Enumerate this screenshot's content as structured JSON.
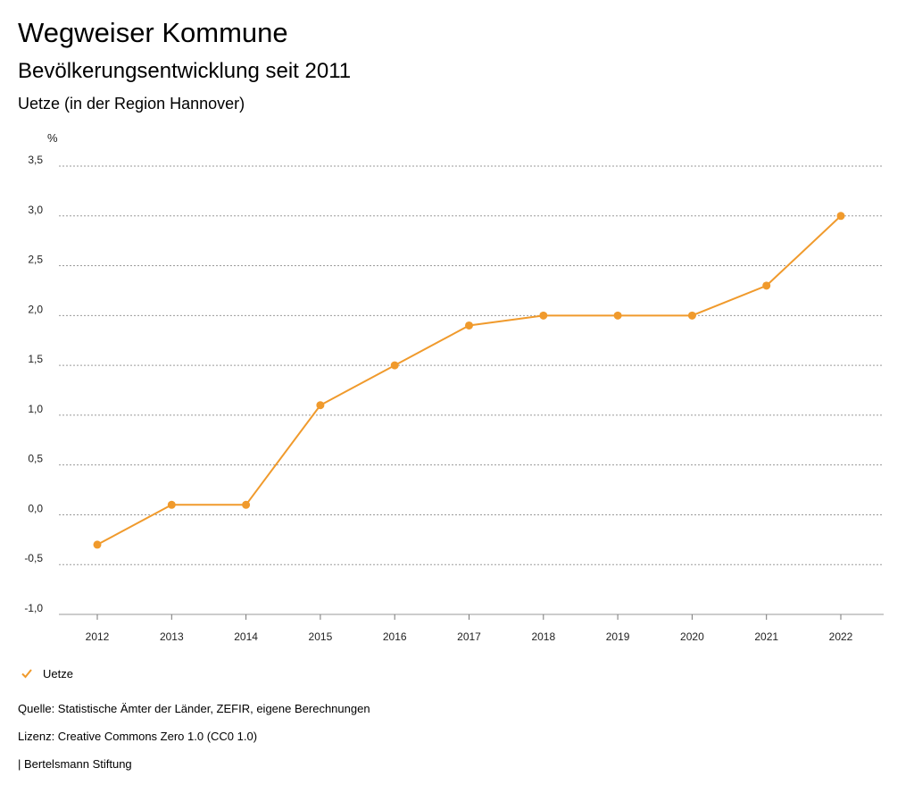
{
  "header": {
    "title": "Wegweiser Kommune",
    "subtitle": "Bevölkerungsentwicklung seit 2011",
    "region": "Uetze (in der Region Hannover)"
  },
  "chart_data": {
    "type": "line",
    "ylabel": "%",
    "categories": [
      "2012",
      "2013",
      "2014",
      "2015",
      "2016",
      "2017",
      "2018",
      "2019",
      "2020",
      "2021",
      "2022"
    ],
    "series": [
      {
        "name": "Uetze",
        "color": "#f09a2c",
        "values": [
          -0.3,
          0.1,
          0.1,
          1.1,
          1.5,
          1.9,
          2.0,
          2.0,
          2.0,
          2.3,
          3.0
        ]
      }
    ],
    "yticks": [
      3.5,
      3.0,
      2.5,
      2.0,
      1.5,
      1.0,
      0.5,
      0.0,
      -0.5,
      -1.0
    ],
    "ytick_labels": [
      "3,5",
      "3,0",
      "2,5",
      "2,0",
      "1,5",
      "1,0",
      "0,5",
      "0,0",
      "-0,5",
      "-1,0"
    ],
    "ylim": [
      -1.0,
      3.5
    ],
    "grid": true,
    "legend": "bottom-left"
  },
  "legend": {
    "label": "Uetze"
  },
  "footer": {
    "source": "Quelle: Statistische Ämter der Länder, ZEFIR, eigene Berechnungen",
    "license": "Lizenz: Creative Commons Zero 1.0 (CC0 1.0)",
    "brand": "| Bertelsmann Stiftung"
  }
}
